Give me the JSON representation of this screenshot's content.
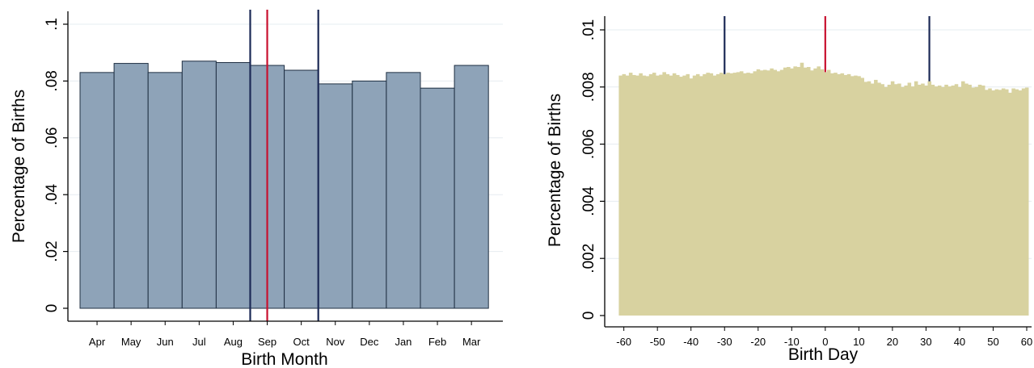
{
  "chart_data": [
    {
      "type": "bar",
      "xlabel": "Birth Month",
      "ylabel": "Percentage of Births",
      "ylim": [
        0,
        0.1
      ],
      "yticks": [
        0,
        0.02,
        0.04,
        0.06,
        0.08,
        0.1
      ],
      "ytick_labels": [
        "0",
        ".02",
        ".04",
        ".06",
        ".08",
        ".1"
      ],
      "categories": [
        "Apr",
        "May",
        "Jun",
        "Jul",
        "Aug",
        "Sep",
        "Oct",
        "Nov",
        "Dec",
        "Jan",
        "Feb",
        "Mar"
      ],
      "values": [
        0.083,
        0.0862,
        0.083,
        0.087,
        0.0865,
        0.0855,
        0.0838,
        0.079,
        0.08,
        0.083,
        0.0775,
        0.0855
      ],
      "grid": true,
      "bar_color": "#8ea3b8",
      "bar_edge_color": "#1f2f42",
      "reference_lines": [
        {
          "x_between": [
            "Aug",
            "Sep"
          ],
          "color": "#1c2a56"
        },
        {
          "x_center": "Sep",
          "color": "#c8102e"
        },
        {
          "x_between": [
            "Oct",
            "Nov"
          ],
          "color": "#1c2a56"
        }
      ]
    },
    {
      "type": "bar",
      "xlabel": "Birth Day",
      "ylabel": "Percentage of Births",
      "ylim": [
        0,
        0.01
      ],
      "yticks": [
        0,
        0.002,
        0.004,
        0.006,
        0.008,
        0.01
      ],
      "ytick_labels": [
        "0",
        ".002",
        ".004",
        ".006",
        ".008",
        ".01"
      ],
      "xlim": [
        -62,
        61
      ],
      "xticks": [
        -60,
        -50,
        -40,
        -30,
        -20,
        -10,
        0,
        10,
        20,
        30,
        40,
        50,
        60
      ],
      "x": [
        -61,
        -60,
        -59,
        -58,
        -57,
        -56,
        -55,
        -54,
        -53,
        -52,
        -51,
        -50,
        -49,
        -48,
        -47,
        -46,
        -45,
        -44,
        -43,
        -42,
        -41,
        -40,
        -39,
        -38,
        -37,
        -36,
        -35,
        -34,
        -33,
        -32,
        -31,
        -30,
        -29,
        -28,
        -27,
        -26,
        -25,
        -24,
        -23,
        -22,
        -21,
        -20,
        -19,
        -18,
        -17,
        -16,
        -15,
        -14,
        -13,
        -12,
        -11,
        -10,
        -9,
        -8,
        -7,
        -6,
        -5,
        -4,
        -3,
        -2,
        -1,
        0,
        1,
        2,
        3,
        4,
        5,
        6,
        7,
        8,
        9,
        10,
        11,
        12,
        13,
        14,
        15,
        16,
        17,
        18,
        19,
        20,
        21,
        22,
        23,
        24,
        25,
        26,
        27,
        28,
        29,
        30,
        31,
        32,
        33,
        34,
        35,
        36,
        37,
        38,
        39,
        40,
        41,
        42,
        43,
        44,
        45,
        46,
        47,
        48,
        49,
        50,
        51,
        52,
        53,
        54,
        55,
        56,
        57,
        58,
        59,
        60
      ],
      "values": [
        0.0084,
        0.00845,
        0.0084,
        0.0085,
        0.00842,
        0.0084,
        0.00848,
        0.0084,
        0.00838,
        0.00845,
        0.0085,
        0.0084,
        0.00843,
        0.00852,
        0.00845,
        0.0084,
        0.00848,
        0.00842,
        0.00836,
        0.0084,
        0.00845,
        0.0083,
        0.0084,
        0.00845,
        0.00838,
        0.00845,
        0.0085,
        0.00848,
        0.0084,
        0.00845,
        0.0085,
        0.00845,
        0.0085,
        0.00848,
        0.0085,
        0.00852,
        0.00855,
        0.00848,
        0.0085,
        0.00848,
        0.00855,
        0.00862,
        0.00858,
        0.0086,
        0.00858,
        0.00865,
        0.0086,
        0.00855,
        0.0086,
        0.00868,
        0.0087,
        0.00865,
        0.00872,
        0.0087,
        0.00885,
        0.00868,
        0.0087,
        0.00858,
        0.00865,
        0.00872,
        0.00862,
        0.00852,
        0.0086,
        0.00848,
        0.0085,
        0.00845,
        0.00848,
        0.00842,
        0.00845,
        0.00838,
        0.0084,
        0.00838,
        0.00832,
        0.00818,
        0.0082,
        0.00812,
        0.00825,
        0.00815,
        0.0081,
        0.008,
        0.00808,
        0.0082,
        0.0081,
        0.00812,
        0.008,
        0.00805,
        0.00815,
        0.00802,
        0.0082,
        0.00808,
        0.00812,
        0.00805,
        0.0082,
        0.00808,
        0.00802,
        0.00805,
        0.008,
        0.00808,
        0.00802,
        0.00805,
        0.0081,
        0.008,
        0.0082,
        0.00812,
        0.00808,
        0.00798,
        0.008,
        0.00808,
        0.00805,
        0.0079,
        0.00795,
        0.00788,
        0.00792,
        0.0079,
        0.00795,
        0.00792,
        0.0078,
        0.00795,
        0.00792,
        0.00788,
        0.00795,
        0.00798
      ],
      "grid": true,
      "bar_color": "#d8d2a0",
      "reference_lines": [
        {
          "x": -30,
          "color": "#1c2a56"
        },
        {
          "x": 0,
          "color": "#c8102e"
        },
        {
          "x": 31,
          "color": "#1c2a56"
        }
      ]
    }
  ]
}
